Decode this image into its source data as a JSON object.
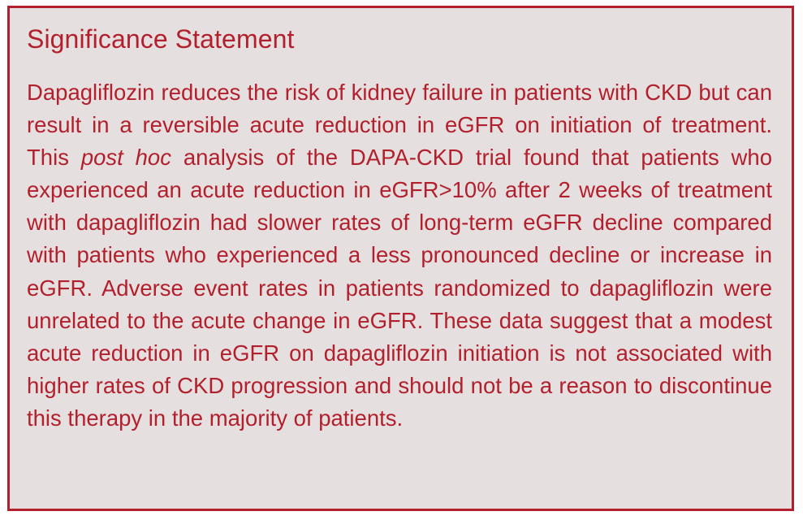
{
  "statement": {
    "title": "Significance Statement",
    "body_before_italic": "Dapagliflozin reduces the risk of kidney failure in patients with CKD but can result in a reversible acute reduction in eGFR on initiation of treatment. This ",
    "body_italic": "post hoc",
    "body_after_italic": " analysis of the DAPA-CKD trial found that patients who experienced an acute reduction in eGFR>10% after 2 weeks of treatment with dapagliflozin had slower rates of long-term eGFR decline compared with patients who experienced a less pronounced decline or increase in eGFR. Adverse event rates in patients randomized to dapagliflo­zin were unrelated to the acute change in eGFR. These data suggest that a modest acute reduction in eGFR on dapagliflozin initiation is not associated with higher rates of CKD progression and should not be a reason to discontinue this therapy in the majority of patients."
  },
  "colors": {
    "accent": "#b3202d",
    "background": "#e5e0df"
  }
}
